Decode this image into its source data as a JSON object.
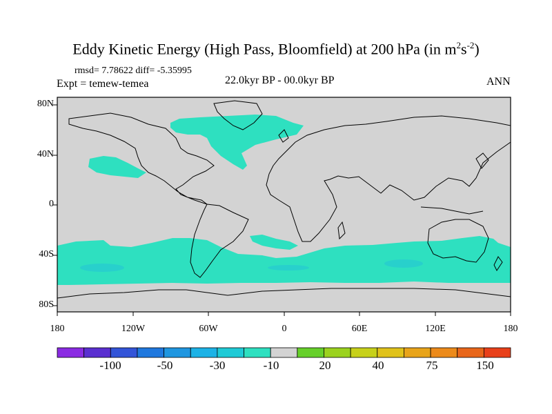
{
  "title": {
    "main": "Eddy Kinetic Energy (High Pass, Bloomfield) at 200 hPa (in m",
    "sup1": "2",
    "mid": "s",
    "sup2": "-2",
    "close": ")"
  },
  "stats": "rmsd= 7.78622 diff= -5.35995",
  "experiment": "Expt = temew-temea",
  "period": "22.0kyr BP - 00.0kyr BP",
  "season": "ANN",
  "colors": {
    "land_background": "#d3d3d3",
    "anomaly_fill": "#2ee0c0",
    "anomaly_fill_strong": "#27c9d2",
    "coastline": "#000000"
  },
  "axes": {
    "lat_ticks": [
      "80N",
      "40N",
      "0",
      "40S",
      "80S"
    ],
    "lon_ticks": [
      "180",
      "120W",
      "60W",
      "0",
      "60E",
      "120E",
      "180"
    ]
  },
  "colorbar": {
    "colors": [
      "#8a2be2",
      "#5a2fd0",
      "#3354d8",
      "#1f78de",
      "#1f96e0",
      "#1cb2e6",
      "#1fcad6",
      "#2ee0c0",
      "#d3d3d3",
      "#66d02a",
      "#9bd21e",
      "#c7d11a",
      "#e0c21a",
      "#e8a41a",
      "#ec8a1a",
      "#e8661a",
      "#e8401a"
    ],
    "labels": [
      "-100",
      "-50",
      "-30",
      "-10",
      "20",
      "40",
      "75",
      "150"
    ]
  }
}
